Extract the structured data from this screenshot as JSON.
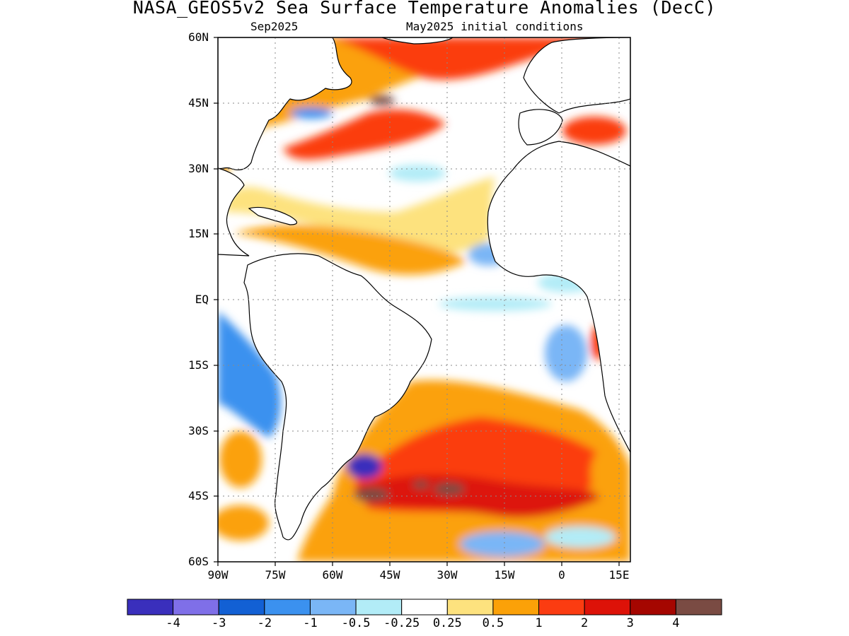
{
  "title": "NASA_GEOS5v2 Sea Surface Temperature Anomalies (DecC)",
  "subtitle_left": "Sep2025",
  "subtitle_right": "May2025 initial conditions",
  "axes": {
    "lon_ticks": [
      "90W",
      "75W",
      "60W",
      "45W",
      "30W",
      "15W",
      "0",
      "15E"
    ],
    "lat_ticks": [
      "60N",
      "45N",
      "30N",
      "15N",
      "EQ",
      "15S",
      "30S",
      "45S",
      "60S"
    ],
    "lon_range": [
      -90,
      18
    ],
    "lat_range": [
      -60,
      60
    ],
    "grid": "dotted"
  },
  "colorbar": {
    "labels": [
      "-4",
      "-3",
      "-2",
      "-1",
      "-0.5",
      "-0.25",
      "0.25",
      "0.5",
      "1",
      "2",
      "3",
      "4"
    ],
    "colors": [
      "#3a2fbc",
      "#7f6fe8",
      "#1260d4",
      "#3b91ef",
      "#7ab6f6",
      "#b2ecf7",
      "#ffffff",
      "#fde27e",
      "#fba108",
      "#fb3c11",
      "#dd1208",
      "#a50600",
      "#7a4b43"
    ]
  },
  "land_color": "#ffffff",
  "coast_color": "#000000"
}
